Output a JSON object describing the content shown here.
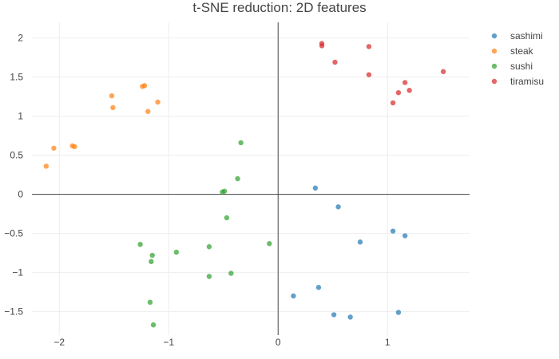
{
  "chart_data": {
    "type": "scatter",
    "title": "t-SNE reduction: 2D features",
    "xlabel": "",
    "ylabel": "",
    "xlim": [
      -2.25,
      1.75
    ],
    "ylim": [
      -1.8,
      2.2
    ],
    "x_ticks": [
      {
        "value": -2,
        "label": "−2"
      },
      {
        "value": -1,
        "label": "−1"
      },
      {
        "value": 0,
        "label": "0"
      },
      {
        "value": 1,
        "label": "1"
      }
    ],
    "y_ticks": [
      {
        "value": 2,
        "label": "2"
      },
      {
        "value": 1.5,
        "label": "1.5"
      },
      {
        "value": 1,
        "label": "1"
      },
      {
        "value": 0.5,
        "label": "0.5"
      },
      {
        "value": 0,
        "label": "0"
      },
      {
        "value": -0.5,
        "label": "−0.5"
      },
      {
        "value": -1,
        "label": "−1"
      },
      {
        "value": -1.5,
        "label": "−1.5"
      }
    ],
    "grid": true,
    "zero_lines": true,
    "legend_position": "top-right",
    "series": [
      {
        "name": "sashimi",
        "color": "#1f77b4",
        "points": [
          [
            0.34,
            0.08
          ],
          [
            0.55,
            -0.16
          ],
          [
            0.75,
            -0.61
          ],
          [
            1.05,
            -0.47
          ],
          [
            1.16,
            -0.53
          ],
          [
            0.14,
            -1.3
          ],
          [
            0.37,
            -1.19
          ],
          [
            0.51,
            -1.54
          ],
          [
            0.66,
            -1.57
          ],
          [
            1.1,
            -1.51
          ]
        ]
      },
      {
        "name": "steak",
        "color": "#ff7f0e",
        "points": [
          [
            -2.12,
            0.36
          ],
          [
            -2.05,
            0.59
          ],
          [
            -1.88,
            0.62
          ],
          [
            -1.86,
            0.61
          ],
          [
            -1.52,
            1.26
          ],
          [
            -1.51,
            1.11
          ],
          [
            -1.24,
            1.38
          ],
          [
            -1.22,
            1.39
          ],
          [
            -1.19,
            1.06
          ],
          [
            -1.1,
            1.18
          ]
        ]
      },
      {
        "name": "sushi",
        "color": "#2ca02c",
        "points": [
          [
            -0.34,
            0.66
          ],
          [
            -0.37,
            0.2
          ],
          [
            -0.51,
            0.03
          ],
          [
            -0.49,
            0.04
          ],
          [
            -0.47,
            -0.3
          ],
          [
            -0.08,
            -0.63
          ],
          [
            -0.63,
            -0.67
          ],
          [
            -0.93,
            -0.74
          ],
          [
            -1.26,
            -0.64
          ],
          [
            -1.15,
            -0.78
          ],
          [
            -1.16,
            -0.86
          ],
          [
            -0.43,
            -1.01
          ],
          [
            -0.63,
            -1.05
          ],
          [
            -1.17,
            -1.38
          ],
          [
            -1.14,
            -1.67
          ]
        ]
      },
      {
        "name": "tiramisu",
        "color": "#d62728",
        "points": [
          [
            0.4,
            1.93
          ],
          [
            0.4,
            1.9
          ],
          [
            0.83,
            1.89
          ],
          [
            0.52,
            1.69
          ],
          [
            0.83,
            1.53
          ],
          [
            1.16,
            1.43
          ],
          [
            1.51,
            1.57
          ],
          [
            1.1,
            1.3
          ],
          [
            1.2,
            1.33
          ],
          [
            1.05,
            1.17
          ]
        ]
      }
    ]
  }
}
